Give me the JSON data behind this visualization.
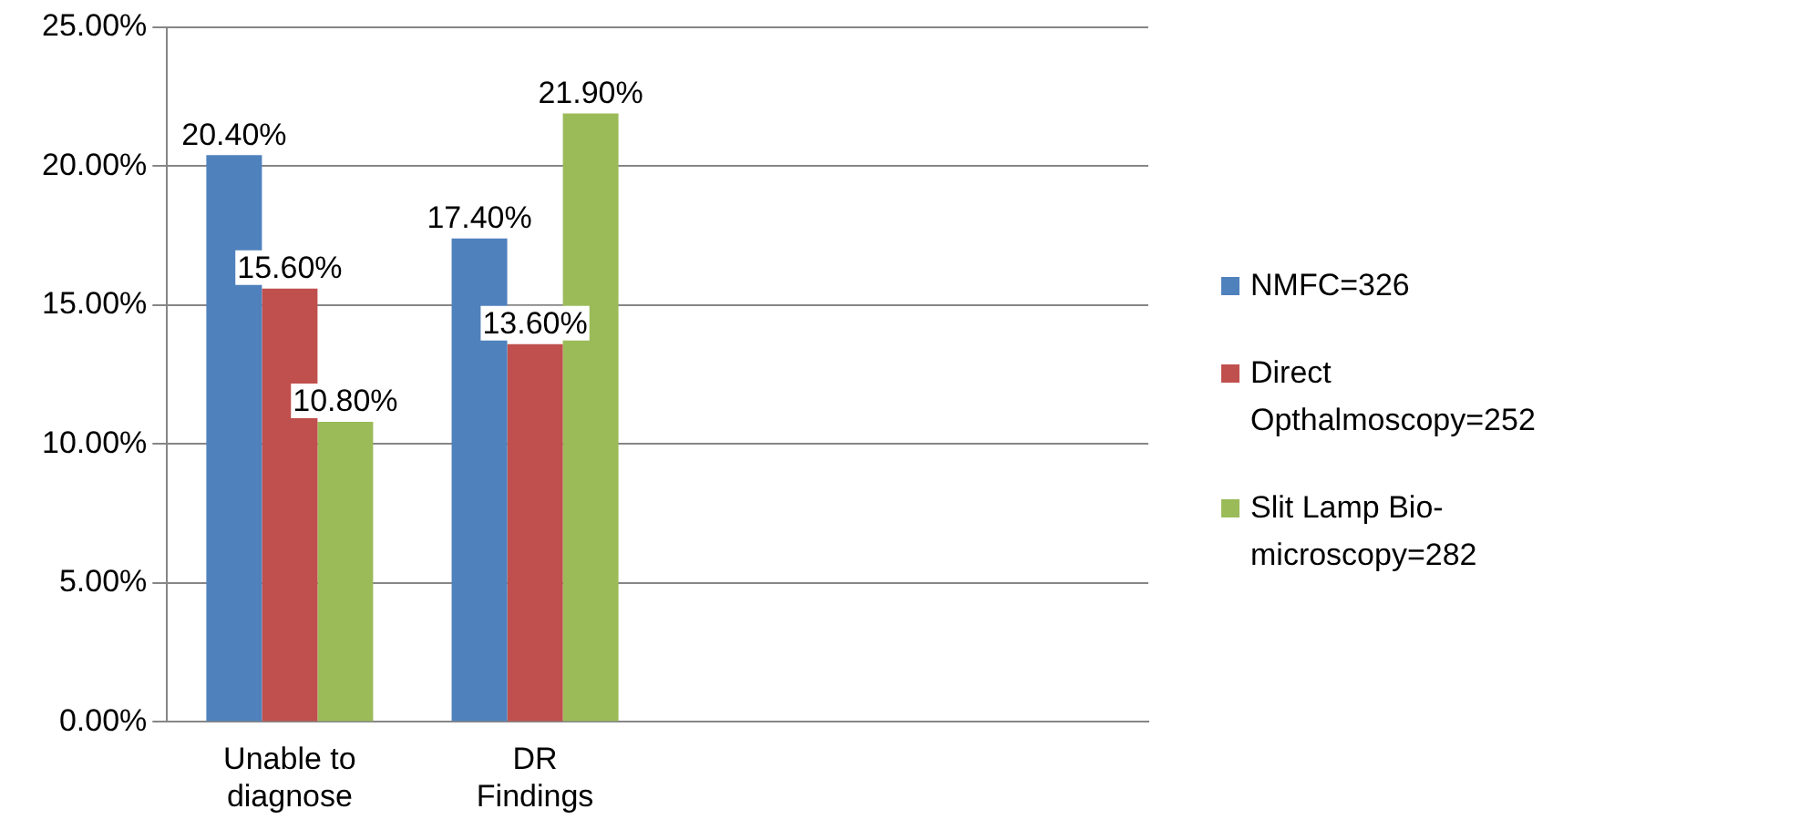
{
  "chart_data": {
    "type": "bar",
    "categories": [
      "Unable to diagnose",
      "DR Findings",
      null,
      null
    ],
    "series": [
      {
        "name": "NMFC=326",
        "color": "#4f81bd",
        "values": [
          20.4,
          17.4,
          null,
          null
        ],
        "value_labels": [
          "20.40%",
          "17.40%",
          null,
          null
        ]
      },
      {
        "name": "Direct Opthalmoscopy=252",
        "color": "#c0504d",
        "values": [
          15.6,
          13.6,
          null,
          null
        ],
        "value_labels": [
          "15.60%",
          "13.60%",
          null,
          null
        ]
      },
      {
        "name": "Slit Lamp Bio-microscopy=282",
        "color": "#9bbb59",
        "values": [
          10.8,
          21.9,
          null,
          null
        ],
        "value_labels": [
          "10.80%",
          "21.90%",
          null,
          null
        ]
      }
    ],
    "ylim": [
      0,
      25
    ],
    "yticks": [
      {
        "value": 0,
        "label": "0.00%"
      },
      {
        "value": 5,
        "label": "5.00%"
      },
      {
        "value": 10,
        "label": "10.00%"
      },
      {
        "value": 15,
        "label": "15.00%"
      },
      {
        "value": 20,
        "label": "20.00%"
      },
      {
        "value": 25,
        "label": "25.00%"
      }
    ],
    "grid": "y",
    "legend": "right"
  }
}
